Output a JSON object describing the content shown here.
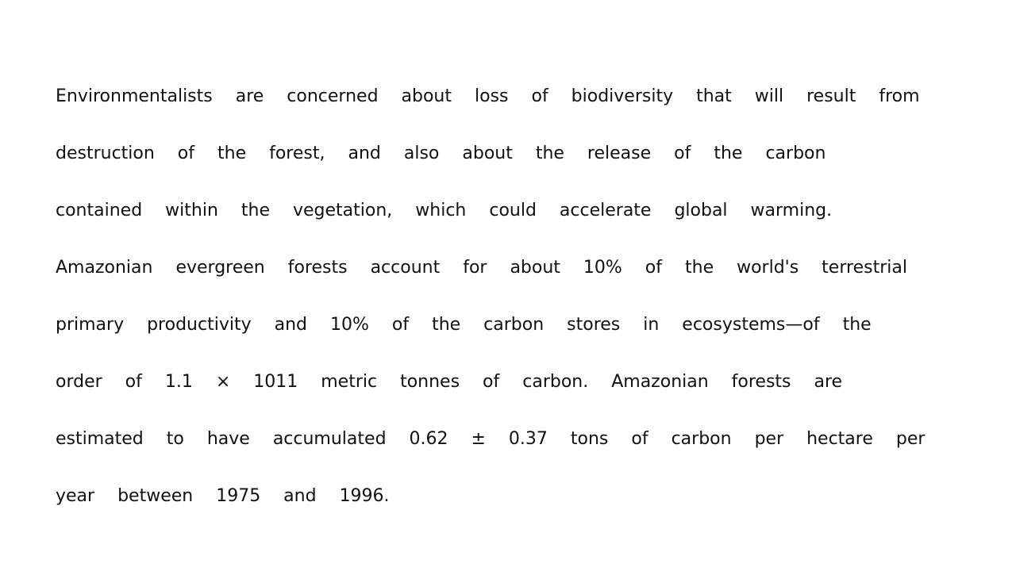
{
  "document": {
    "lines": [
      "Environmentalists are concerned about loss of biodiversity that will result from",
      "destruction of the forest, and also about the release of the carbon",
      "contained within the vegetation, which could accelerate global warming.",
      "Amazonian evergreen forests account for about 10% of the world's terrestrial",
      "primary productivity and 10% of the carbon stores in ecosystems—of the",
      "order of 1.1 × 1011 metric tonnes of carbon. Amazonian forests are",
      "estimated to have accumulated 0.62 ± 0.37 tons of carbon per hectare per",
      "year between 1975 and 1996."
    ]
  }
}
